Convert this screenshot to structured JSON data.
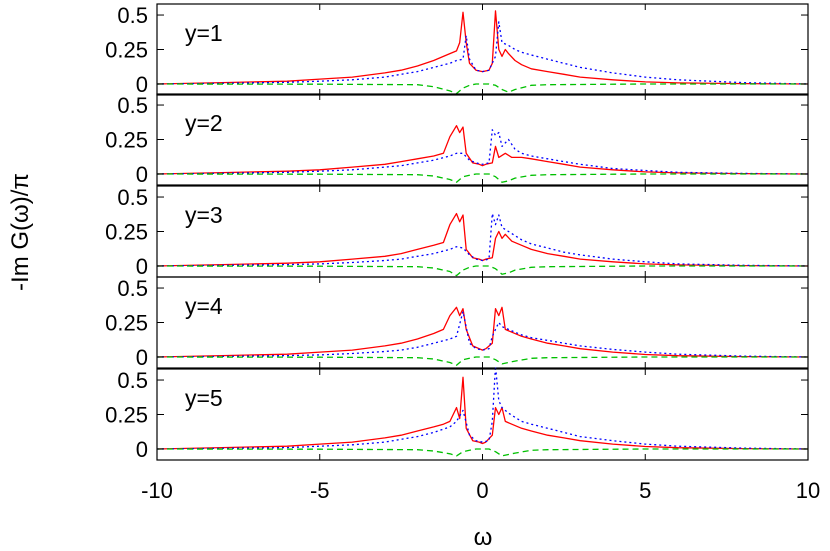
{
  "chart_data": {
    "type": "line",
    "ylabel": "-Im G(ω)/π",
    "xlabel": "ω",
    "xlim": [
      -10,
      10
    ],
    "ylim": [
      -0.08,
      0.58
    ],
    "x_ticks": [
      -10,
      -5,
      0,
      5,
      10
    ],
    "x_tick_labels": [
      "-10",
      "-5",
      "0",
      "5",
      "10"
    ],
    "y_ticks": [
      0,
      0.25,
      0.5
    ],
    "y_tick_labels": [
      "0",
      "0.25",
      "0.5"
    ],
    "grid": false,
    "legend": "none",
    "series_styles": [
      {
        "color": "#ff0000",
        "dash": "solid"
      },
      {
        "color": "#0000ff",
        "dash": "dotted"
      },
      {
        "color": "#00c000",
        "dash": "dashed"
      }
    ],
    "panels": [
      {
        "label": "y=1",
        "series": [
          {
            "x": [
              -10,
              -8,
              -6,
              -5,
              -4,
              -3,
              -2.5,
              -2,
              -1.5,
              -1.2,
              -1,
              -0.8,
              -0.7,
              -0.6,
              -0.5,
              -0.4,
              -0.2,
              0,
              0.2,
              0.3,
              0.4,
              0.5,
              0.6,
              0.7,
              0.8,
              1,
              1.2,
              1.5,
              2,
              2.5,
              3,
              4,
              5,
              6,
              8,
              10
            ],
            "y": [
              0.0,
              0.01,
              0.02,
              0.035,
              0.05,
              0.08,
              0.1,
              0.13,
              0.17,
              0.2,
              0.22,
              0.24,
              0.3,
              0.52,
              0.3,
              0.15,
              0.1,
              0.09,
              0.1,
              0.15,
              0.53,
              0.25,
              0.2,
              0.25,
              0.22,
              0.17,
              0.14,
              0.11,
              0.09,
              0.07,
              0.05,
              0.03,
              0.015,
              0.008,
              0.003,
              0.0
            ]
          },
          {
            "x": [
              -10,
              -8,
              -6,
              -5,
              -4,
              -3,
              -2.5,
              -2,
              -1.5,
              -1,
              -0.8,
              -0.6,
              -0.5,
              -0.4,
              -0.2,
              0,
              0.2,
              0.4,
              0.5,
              0.6,
              0.8,
              1,
              1.2,
              1.5,
              2,
              2.5,
              3,
              4,
              5,
              6,
              8,
              10
            ],
            "y": [
              0.0,
              0.005,
              0.012,
              0.02,
              0.03,
              0.05,
              0.07,
              0.09,
              0.12,
              0.15,
              0.17,
              0.18,
              0.35,
              0.18,
              0.1,
              0.09,
              0.1,
              0.2,
              0.45,
              0.3,
              0.28,
              0.25,
              0.23,
              0.21,
              0.18,
              0.15,
              0.12,
              0.08,
              0.05,
              0.03,
              0.01,
              0.0
            ]
          },
          {
            "x": [
              -10,
              -5,
              -2,
              -1.5,
              -1,
              -0.8,
              -0.6,
              -0.4,
              -0.2,
              0,
              0.2,
              0.4,
              0.6,
              0.8,
              1,
              1.5,
              2,
              5,
              10
            ],
            "y": [
              0.0,
              -0.002,
              -0.005,
              -0.02,
              -0.05,
              -0.07,
              -0.03,
              -0.01,
              0.0,
              0.0,
              0.0,
              -0.01,
              -0.04,
              -0.06,
              -0.04,
              -0.01,
              -0.005,
              0.0,
              0.0
            ]
          }
        ]
      },
      {
        "label": "y=2",
        "series": [
          {
            "x": [
              -10,
              -8,
              -6,
              -5,
              -4,
              -3,
              -2.5,
              -2,
              -1.5,
              -1.2,
              -1,
              -0.8,
              -0.7,
              -0.6,
              -0.5,
              -0.3,
              -0.1,
              0,
              0.1,
              0.3,
              0.4,
              0.5,
              0.7,
              0.9,
              1.2,
              1.5,
              2,
              2.5,
              3,
              4,
              5,
              6,
              8,
              10
            ],
            "y": [
              0.0,
              0.01,
              0.02,
              0.03,
              0.05,
              0.07,
              0.09,
              0.11,
              0.13,
              0.15,
              0.27,
              0.35,
              0.3,
              0.34,
              0.15,
              0.08,
              0.07,
              0.06,
              0.07,
              0.08,
              0.2,
              0.12,
              0.15,
              0.12,
              0.12,
              0.11,
              0.09,
              0.07,
              0.05,
              0.03,
              0.015,
              0.008,
              0.003,
              0.0
            ]
          },
          {
            "x": [
              -10,
              -8,
              -6,
              -5,
              -4,
              -3,
              -2.5,
              -2,
              -1.5,
              -1,
              -0.8,
              -0.6,
              -0.4,
              -0.2,
              0,
              0.2,
              0.3,
              0.4,
              0.5,
              0.6,
              0.8,
              1,
              1.2,
              1.5,
              2,
              2.5,
              3,
              4,
              5,
              6,
              8,
              10
            ],
            "y": [
              0.0,
              0.005,
              0.012,
              0.02,
              0.03,
              0.05,
              0.06,
              0.08,
              0.1,
              0.13,
              0.15,
              0.15,
              0.1,
              0.08,
              0.07,
              0.08,
              0.32,
              0.28,
              0.3,
              0.2,
              0.25,
              0.18,
              0.15,
              0.13,
              0.11,
              0.09,
              0.07,
              0.04,
              0.025,
              0.012,
              0.004,
              0.0
            ]
          },
          {
            "x": [
              -10,
              -5,
              -2,
              -1.5,
              -1,
              -0.8,
              -0.6,
              -0.4,
              -0.2,
              0,
              0.2,
              0.4,
              0.6,
              0.8,
              1,
              1.5,
              2,
              5,
              10
            ],
            "y": [
              0.0,
              -0.002,
              -0.005,
              -0.015,
              -0.04,
              -0.06,
              -0.02,
              -0.01,
              0.0,
              0.0,
              0.0,
              -0.02,
              -0.06,
              -0.05,
              -0.03,
              -0.01,
              -0.005,
              0.0,
              0.0
            ]
          }
        ]
      },
      {
        "label": "y=3",
        "series": [
          {
            "x": [
              -10,
              -8,
              -6,
              -5,
              -4,
              -3,
              -2.5,
              -2,
              -1.5,
              -1.2,
              -1,
              -0.8,
              -0.7,
              -0.6,
              -0.5,
              -0.3,
              -0.1,
              0,
              0.1,
              0.3,
              0.4,
              0.5,
              0.6,
              0.7,
              0.9,
              1.2,
              1.5,
              2,
              2.5,
              3,
              4,
              5,
              6,
              8,
              10
            ],
            "y": [
              0.0,
              0.01,
              0.02,
              0.03,
              0.05,
              0.07,
              0.09,
              0.12,
              0.15,
              0.17,
              0.3,
              0.38,
              0.32,
              0.37,
              0.12,
              0.06,
              0.05,
              0.04,
              0.05,
              0.06,
              0.2,
              0.25,
              0.2,
              0.23,
              0.18,
              0.15,
              0.12,
              0.09,
              0.07,
              0.05,
              0.03,
              0.015,
              0.008,
              0.003,
              0.0
            ]
          },
          {
            "x": [
              -10,
              -8,
              -6,
              -5,
              -4,
              -3,
              -2.5,
              -2,
              -1.5,
              -1,
              -0.8,
              -0.6,
              -0.4,
              -0.2,
              0,
              0.2,
              0.3,
              0.4,
              0.5,
              0.6,
              0.8,
              1,
              1.2,
              1.5,
              2,
              2.5,
              3,
              4,
              5,
              6,
              8,
              10
            ],
            "y": [
              0.0,
              0.005,
              0.01,
              0.015,
              0.025,
              0.04,
              0.05,
              0.07,
              0.09,
              0.12,
              0.14,
              0.13,
              0.08,
              0.05,
              0.04,
              0.05,
              0.38,
              0.3,
              0.37,
              0.28,
              0.25,
              0.22,
              0.19,
              0.16,
              0.13,
              0.1,
              0.08,
              0.05,
              0.03,
              0.015,
              0.005,
              0.0
            ]
          },
          {
            "x": [
              -10,
              -5,
              -2,
              -1.5,
              -1,
              -0.8,
              -0.6,
              -0.4,
              -0.2,
              0,
              0.2,
              0.4,
              0.6,
              0.8,
              1,
              1.5,
              2,
              5,
              10
            ],
            "y": [
              0.0,
              -0.002,
              -0.005,
              -0.015,
              -0.04,
              -0.07,
              -0.03,
              -0.01,
              0.0,
              0.0,
              0.0,
              -0.02,
              -0.06,
              -0.05,
              -0.03,
              -0.01,
              -0.005,
              0.0,
              0.0
            ]
          }
        ]
      },
      {
        "label": "y=4",
        "series": [
          {
            "x": [
              -10,
              -8,
              -6,
              -5,
              -4,
              -3,
              -2.5,
              -2,
              -1.5,
              -1.2,
              -1,
              -0.8,
              -0.7,
              -0.6,
              -0.5,
              -0.3,
              -0.1,
              0,
              0.1,
              0.3,
              0.4,
              0.5,
              0.6,
              0.7,
              0.9,
              1.2,
              1.5,
              2,
              2.5,
              3,
              4,
              5,
              6,
              8,
              10
            ],
            "y": [
              0.0,
              0.01,
              0.02,
              0.035,
              0.05,
              0.08,
              0.1,
              0.13,
              0.17,
              0.2,
              0.3,
              0.36,
              0.3,
              0.35,
              0.2,
              0.08,
              0.06,
              0.05,
              0.06,
              0.1,
              0.35,
              0.3,
              0.36,
              0.2,
              0.18,
              0.15,
              0.13,
              0.1,
              0.08,
              0.06,
              0.035,
              0.018,
              0.009,
              0.003,
              0.0
            ]
          },
          {
            "x": [
              -10,
              -8,
              -6,
              -5,
              -4,
              -3,
              -2.5,
              -2,
              -1.5,
              -1,
              -0.8,
              -0.6,
              -0.4,
              -0.2,
              0,
              0.2,
              0.3,
              0.4,
              0.5,
              0.6,
              0.8,
              1,
              1.2,
              1.5,
              2,
              2.5,
              3,
              4,
              5,
              6,
              8,
              10
            ],
            "y": [
              0.0,
              0.004,
              0.01,
              0.015,
              0.025,
              0.04,
              0.05,
              0.07,
              0.1,
              0.13,
              0.15,
              0.33,
              0.1,
              0.06,
              0.05,
              0.06,
              0.15,
              0.2,
              0.25,
              0.22,
              0.2,
              0.18,
              0.16,
              0.14,
              0.12,
              0.1,
              0.08,
              0.055,
              0.035,
              0.02,
              0.006,
              0.0
            ]
          },
          {
            "x": [
              -10,
              -5,
              -2,
              -1.5,
              -1,
              -0.8,
              -0.6,
              -0.4,
              -0.2,
              0,
              0.2,
              0.4,
              0.6,
              0.8,
              1,
              1.5,
              2,
              5,
              10
            ],
            "y": [
              0.0,
              -0.002,
              -0.005,
              -0.015,
              -0.04,
              -0.06,
              -0.02,
              -0.01,
              0.0,
              0.0,
              0.0,
              -0.02,
              -0.05,
              -0.04,
              -0.03,
              -0.01,
              -0.005,
              0.0,
              0.0
            ]
          }
        ]
      },
      {
        "label": "y=5",
        "series": [
          {
            "x": [
              -10,
              -8,
              -6,
              -5,
              -4,
              -3,
              -2.5,
              -2,
              -1.5,
              -1.2,
              -1,
              -0.8,
              -0.7,
              -0.6,
              -0.5,
              -0.3,
              -0.1,
              0,
              0.1,
              0.3,
              0.4,
              0.5,
              0.6,
              0.7,
              0.9,
              1.2,
              1.5,
              2,
              2.5,
              3,
              4,
              5,
              6,
              8,
              10
            ],
            "y": [
              0.0,
              0.01,
              0.02,
              0.035,
              0.05,
              0.08,
              0.1,
              0.13,
              0.16,
              0.18,
              0.2,
              0.3,
              0.22,
              0.52,
              0.15,
              0.06,
              0.05,
              0.04,
              0.05,
              0.1,
              0.3,
              0.25,
              0.3,
              0.2,
              0.18,
              0.15,
              0.13,
              0.1,
              0.08,
              0.06,
              0.035,
              0.018,
              0.009,
              0.003,
              0.0
            ]
          },
          {
            "x": [
              -10,
              -8,
              -6,
              -5,
              -4,
              -3,
              -2.5,
              -2,
              -1.5,
              -1,
              -0.8,
              -0.6,
              -0.4,
              -0.2,
              0,
              0.2,
              0.3,
              0.4,
              0.5,
              0.6,
              0.8,
              1,
              1.2,
              1.5,
              2,
              2.5,
              3,
              4,
              5,
              6,
              8,
              10
            ],
            "y": [
              0.0,
              0.005,
              0.01,
              0.02,
              0.03,
              0.05,
              0.07,
              0.09,
              0.12,
              0.16,
              0.2,
              0.28,
              0.1,
              0.06,
              0.05,
              0.06,
              0.2,
              0.6,
              0.35,
              0.3,
              0.26,
              0.23,
              0.2,
              0.18,
              0.15,
              0.12,
              0.09,
              0.06,
              0.035,
              0.02,
              0.006,
              0.0
            ]
          },
          {
            "x": [
              -10,
              -5,
              -2,
              -1.5,
              -1,
              -0.8,
              -0.6,
              -0.4,
              -0.2,
              0,
              0.2,
              0.4,
              0.6,
              0.8,
              1,
              1.5,
              2,
              5,
              10
            ],
            "y": [
              0.0,
              -0.002,
              -0.005,
              -0.015,
              -0.035,
              -0.05,
              -0.02,
              -0.01,
              0.0,
              0.0,
              0.0,
              -0.02,
              -0.05,
              -0.04,
              -0.03,
              -0.01,
              -0.005,
              0.0,
              0.0
            ]
          }
        ]
      }
    ]
  }
}
